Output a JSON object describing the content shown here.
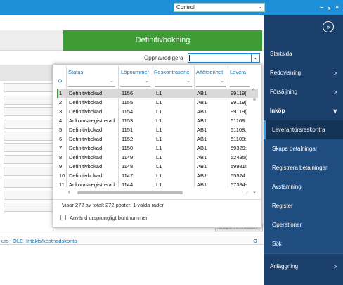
{
  "topbar": {
    "control_value": "Control",
    "minimize": "–",
    "restore": "ₐ",
    "close": "×"
  },
  "main": {
    "definitivbokning_label": "Definitivbokning",
    "oppna_label": "Öppna/redigera",
    "skapa_label": "Skapa verifikation",
    "column_strip": [
      "urs",
      "OLE",
      "Intäkts/kostnadskonto"
    ]
  },
  "popup": {
    "columns": [
      "Status",
      "Löpnummer",
      "Reskontraserie",
      "Affärsenhet",
      "Levera"
    ],
    "rows": [
      {
        "n": "1",
        "status": "Definitivbokad",
        "lop": "1156",
        "serie": "L1",
        "enhet": "AB1",
        "lev": "99119("
      },
      {
        "n": "2",
        "status": "Definitivbokad",
        "lop": "1155",
        "serie": "L1",
        "enhet": "AB1",
        "lev": "99119("
      },
      {
        "n": "3",
        "status": "Definitivbokad",
        "lop": "1154",
        "serie": "L1",
        "enhet": "AB1",
        "lev": "99119("
      },
      {
        "n": "4",
        "status": "Ankomstregistrerad",
        "lop": "1153",
        "serie": "L1",
        "enhet": "AB1",
        "lev": "51108:"
      },
      {
        "n": "5",
        "status": "Definitivbokad",
        "lop": "1151",
        "serie": "L1",
        "enhet": "AB1",
        "lev": "51108:"
      },
      {
        "n": "6",
        "status": "Definitivbokad",
        "lop": "1152",
        "serie": "L1",
        "enhet": "AB1",
        "lev": "51108:"
      },
      {
        "n": "7",
        "status": "Definitivbokad",
        "lop": "1150",
        "serie": "L1",
        "enhet": "AB1",
        "lev": "59329:"
      },
      {
        "n": "8",
        "status": "Definitivbokad",
        "lop": "1149",
        "serie": "L1",
        "enhet": "AB1",
        "lev": "52495("
      },
      {
        "n": "9",
        "status": "Definitivbokad",
        "lop": "1148",
        "serie": "L1",
        "enhet": "AB1",
        "lev": "59981!"
      },
      {
        "n": "10",
        "status": "Definitivbokad",
        "lop": "1147",
        "serie": "L1",
        "enhet": "AB1",
        "lev": "55524:"
      },
      {
        "n": "11",
        "status": "Ankomstregistrerad",
        "lop": "1144",
        "serie": "L1",
        "enhet": "AB1",
        "lev": "57384-"
      }
    ],
    "footer": "Visar 272 av totalt 272 poster. 1 valda rader",
    "checkbox_label": "Använd ursprungligt buntnummer"
  },
  "sidebar": {
    "items": [
      {
        "label": "Startsida",
        "chev": ""
      },
      {
        "label": "Redovisning",
        "chev": ">"
      },
      {
        "label": "Försäljning",
        "chev": ">"
      },
      {
        "label": "Inköp",
        "chev": "∨"
      }
    ],
    "sub": [
      "Leverantörsreskontra",
      "Skapa betalningar",
      "Registrera betalningar",
      "Avstämning",
      "Register",
      "Operationer",
      "Sök"
    ],
    "anlaggning": "Anläggning",
    "anlaggning_chev": ">"
  },
  "colors": {
    "topbar": "#1d8fd9",
    "sidebar": "#1b3f6b",
    "green": "#3f9b36",
    "selected_row": "#d9d9d9",
    "header_text": "#1d6fa8"
  }
}
